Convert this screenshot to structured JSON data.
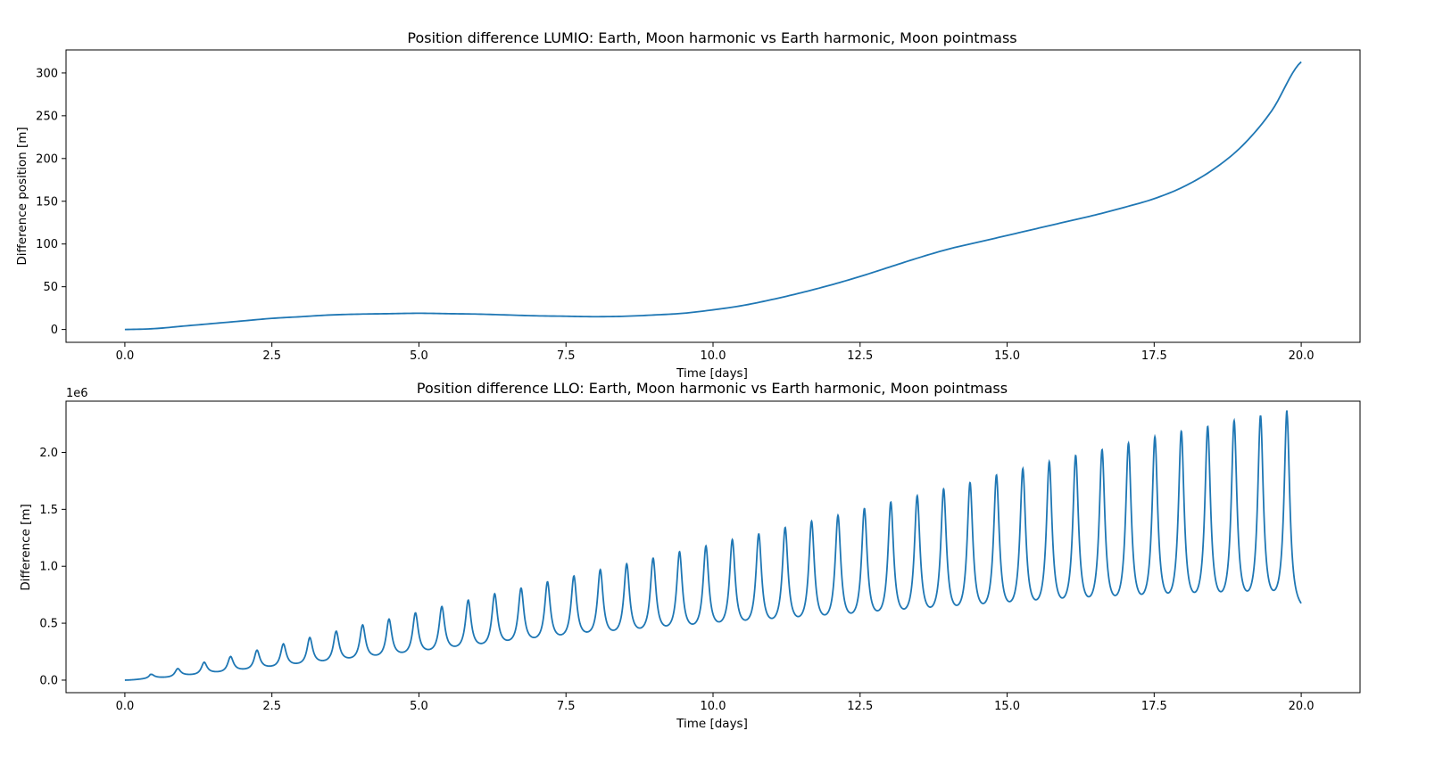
{
  "chart_data": [
    {
      "type": "line",
      "title": "Position difference LUMIO: Earth, Moon harmonic vs Earth harmonic, Moon pointmass",
      "xlabel": "Time [days]",
      "ylabel": "Difference position  [m]",
      "xlim": [
        -1.0,
        21.0
      ],
      "ylim": [
        -15,
        327
      ],
      "x_ticks": [
        "0.0",
        "2.5",
        "5.0",
        "7.5",
        "10.0",
        "12.5",
        "15.0",
        "17.5",
        "20.0"
      ],
      "y_ticks": [
        "0",
        "50",
        "100",
        "150",
        "200",
        "250",
        "300"
      ],
      "grid": false,
      "color": "#1f77b4",
      "series": [
        {
          "x": [
            0,
            0.5,
            1,
            1.5,
            2,
            2.5,
            3,
            3.5,
            4,
            4.5,
            5,
            5.5,
            6,
            6.5,
            7,
            7.5,
            8,
            8.5,
            9,
            9.5,
            10,
            10.5,
            11,
            11.5,
            12,
            12.5,
            13,
            13.5,
            14,
            14.5,
            15,
            15.5,
            16,
            16.5,
            17,
            17.5,
            18,
            18.5,
            19,
            19.5,
            20
          ],
          "values": [
            0,
            1,
            4,
            7,
            10,
            13,
            15,
            17,
            18,
            18.5,
            19,
            18.5,
            18,
            17,
            16,
            15.5,
            15,
            15.5,
            17,
            19,
            23,
            28,
            35,
            43,
            52,
            62,
            73,
            84,
            94,
            102,
            110,
            118,
            126,
            134,
            143,
            153,
            167,
            187,
            215,
            256,
            313
          ]
        }
      ]
    },
    {
      "type": "line",
      "title": "Position difference LLO: Earth, Moon harmonic vs Earth harmonic, Moon pointmass",
      "xlabel": "Time [days]",
      "ylabel": "Difference [m]",
      "offset_label": "1e6",
      "xlim": [
        -1.0,
        21.0
      ],
      "ylim": [
        -0.11,
        2.45
      ],
      "x_ticks": [
        "0.0",
        "2.5",
        "5.0",
        "7.5",
        "10.0",
        "12.5",
        "15.0",
        "17.5",
        "20.0"
      ],
      "y_ticks": [
        "0.0",
        "0.5",
        "1.0",
        "1.5",
        "2.0"
      ],
      "grid": false,
      "color": "#1f77b4",
      "oscillation": {
        "period_days": 0.449,
        "first_peak_day": 0.45,
        "peak_values_e6": [
          0.05,
          0.1,
          0.155,
          0.205,
          0.26,
          0.315,
          0.37,
          0.425,
          0.48,
          0.53,
          0.585,
          0.64,
          0.695,
          0.75,
          0.8,
          0.855,
          0.905,
          0.96,
          1.01,
          1.06,
          1.115,
          1.165,
          1.22,
          1.27,
          1.325,
          1.38,
          1.43,
          1.49,
          1.545,
          1.6,
          1.66,
          1.715,
          1.78,
          1.835,
          1.895,
          1.95,
          2.0,
          2.055,
          2.11,
          2.16,
          2.2,
          2.25,
          2.295,
          2.34
        ],
        "trough_values_e6": [
          0.02,
          0.04,
          0.06,
          0.08,
          0.1,
          0.12,
          0.14,
          0.16,
          0.18,
          0.2,
          0.22,
          0.245,
          0.265,
          0.29,
          0.31,
          0.33,
          0.35,
          0.36,
          0.375,
          0.39,
          0.4,
          0.415,
          0.425,
          0.435,
          0.445,
          0.455,
          0.465,
          0.48,
          0.49,
          0.5,
          0.51,
          0.52,
          0.53,
          0.54,
          0.55,
          0.555,
          0.56,
          0.565,
          0.57
        ],
        "end_value_e6": 0.58
      }
    }
  ]
}
